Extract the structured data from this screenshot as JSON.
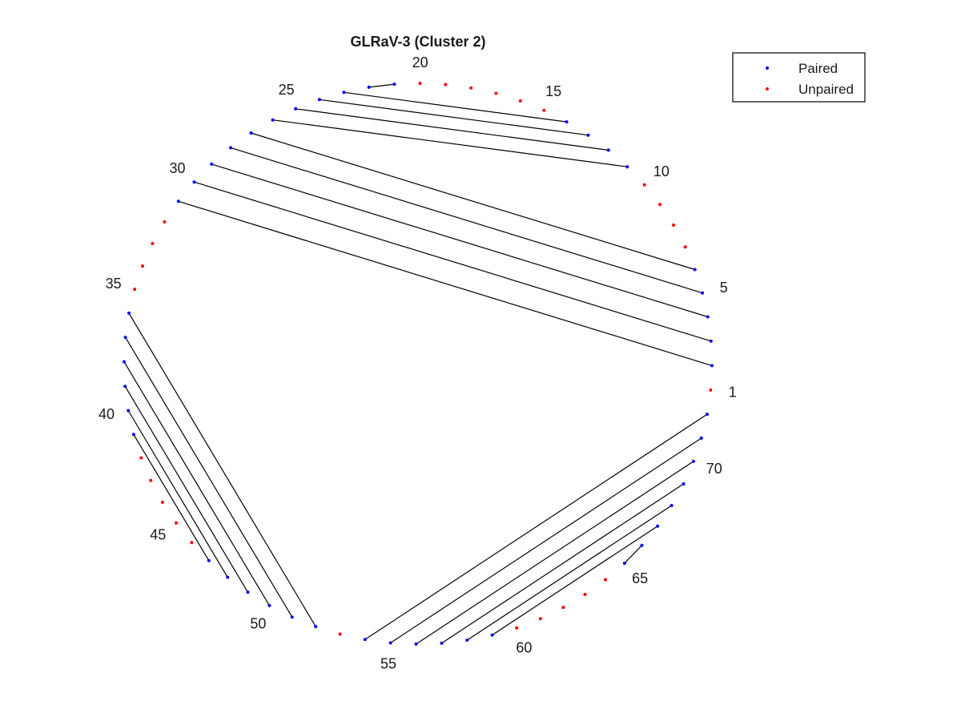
{
  "chart_data": {
    "type": "scatter",
    "title": "GLRaV-3 (Cluster 2)",
    "n_positions": 72,
    "position_labels": [
      "1",
      "5",
      "10",
      "15",
      "20",
      "25",
      "30",
      "35",
      "40",
      "45",
      "50",
      "55",
      "60",
      "65",
      "70"
    ],
    "series": [
      {
        "name": "Paired",
        "color": "#0000ff",
        "positions": [
          2,
          3,
          4,
          5,
          6,
          11,
          12,
          13,
          14,
          21,
          22,
          23,
          24,
          25,
          26,
          27,
          28,
          29,
          30,
          31,
          36,
          37,
          38,
          39,
          40,
          41,
          47,
          48,
          49,
          50,
          51,
          52,
          54,
          55,
          56,
          57,
          58,
          59,
          65,
          66,
          67,
          68,
          69,
          70,
          71,
          72
        ]
      },
      {
        "name": "Unpaired",
        "color": "#ff0000",
        "positions": [
          1,
          7,
          8,
          9,
          10,
          15,
          16,
          17,
          18,
          19,
          20,
          32,
          33,
          34,
          35,
          42,
          43,
          44,
          45,
          46,
          53,
          60,
          61,
          62,
          63,
          64
        ]
      }
    ],
    "pairs": [
      [
        2,
        31
      ],
      [
        3,
        30
      ],
      [
        4,
        29
      ],
      [
        5,
        28
      ],
      [
        6,
        27
      ],
      [
        11,
        26
      ],
      [
        12,
        25
      ],
      [
        13,
        24
      ],
      [
        14,
        23
      ],
      [
        21,
        22
      ],
      [
        36,
        52
      ],
      [
        37,
        51
      ],
      [
        38,
        50
      ],
      [
        39,
        49
      ],
      [
        40,
        48
      ],
      [
        41,
        47
      ],
      [
        54,
        72
      ],
      [
        55,
        71
      ],
      [
        56,
        70
      ],
      [
        57,
        69
      ],
      [
        58,
        68
      ],
      [
        59,
        67
      ],
      [
        65,
        66
      ]
    ],
    "legend": {
      "placement": "top-right",
      "entries": [
        "Paired",
        "Unpaired"
      ]
    },
    "grid": false
  }
}
